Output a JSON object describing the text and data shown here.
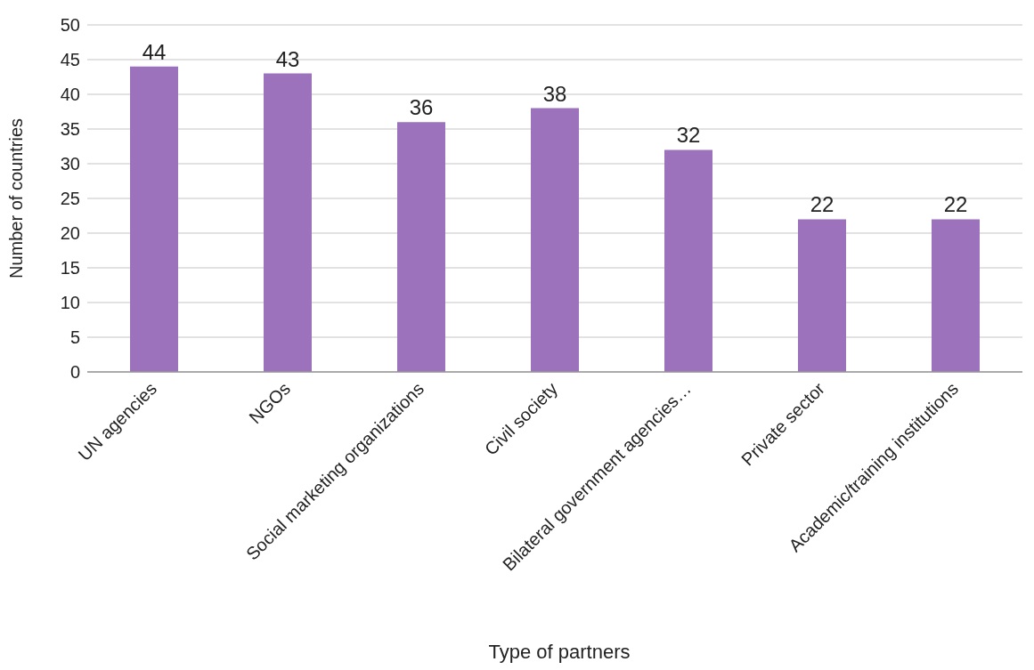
{
  "chart_data": {
    "type": "bar",
    "xlabel": "Type of partners",
    "ylabel": "Number of countries",
    "categories": [
      "UN agencies",
      "NGOs",
      "Social marketing organizations",
      "Civil society",
      "Bilateral government agencies…",
      "Private sector",
      "Academic/training institutions"
    ],
    "values": [
      44,
      43,
      36,
      38,
      32,
      22,
      22
    ],
    "color": "#9b72bb",
    "ylim": [
      0,
      50
    ],
    "yticks": [
      0,
      5,
      10,
      15,
      20,
      25,
      30,
      35,
      40,
      45,
      50
    ],
    "grid": "y",
    "data_labels": true,
    "legend": false
  }
}
